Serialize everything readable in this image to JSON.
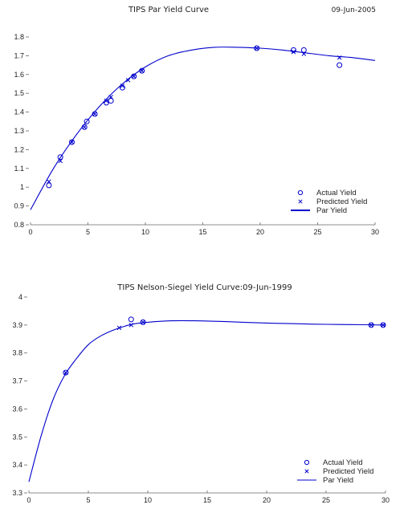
{
  "chart_data": [
    {
      "type": "line",
      "title": "TIPS Par Yield Curve",
      "date_label": "09-Jun-2005",
      "xlabel": "",
      "ylabel": "",
      "xlim": [
        0,
        30
      ],
      "ylim": [
        0.8,
        1.8
      ],
      "xticks": [
        "0",
        "5",
        "10",
        "15",
        "20",
        "25",
        "30"
      ],
      "yticks": [
        "0.8",
        "0.9",
        "1",
        "1.1",
        "1.2",
        "1.3",
        "1.4",
        "1.5",
        "1.6",
        "1.7",
        "1.8"
      ],
      "legend": {
        "placement": "bottom-right",
        "entries": [
          "Actual Yield",
          "Predicted Yield",
          "Par Yield"
        ]
      },
      "color": "#0000cc",
      "series": [
        {
          "name": "Actual Yield",
          "marker": "circle",
          "x": [
            1.6,
            2.6,
            3.6,
            4.7,
            4.9,
            5.6,
            6.6,
            7.0,
            8.0,
            9.0,
            9.7,
            19.7,
            22.9,
            23.8,
            26.9
          ],
          "y": [
            1.01,
            1.16,
            1.24,
            1.32,
            1.35,
            1.39,
            1.45,
            1.46,
            1.53,
            1.59,
            1.62,
            1.74,
            1.73,
            1.73,
            1.65
          ]
        },
        {
          "name": "Predicted Yield",
          "marker": "x",
          "x": [
            1.6,
            2.6,
            3.6,
            4.7,
            5.6,
            6.6,
            7.0,
            8.0,
            8.5,
            9.0,
            9.7,
            19.7,
            22.9,
            23.8,
            26.9
          ],
          "y": [
            1.03,
            1.14,
            1.24,
            1.32,
            1.39,
            1.46,
            1.48,
            1.54,
            1.57,
            1.59,
            1.62,
            1.74,
            1.72,
            1.71,
            1.69
          ]
        },
        {
          "name": "Par Yield",
          "marker": "line",
          "x": [
            0,
            2,
            4,
            6,
            8,
            10,
            12,
            14,
            16,
            18,
            20,
            22,
            24,
            26,
            28,
            30
          ],
          "y": [
            0.88,
            1.1,
            1.28,
            1.43,
            1.55,
            1.64,
            1.7,
            1.73,
            1.745,
            1.745,
            1.74,
            1.73,
            1.715,
            1.7,
            1.69,
            1.675
          ]
        }
      ]
    },
    {
      "type": "line",
      "title": "TIPS Nelson-Siegel Yield Curve:09-Jun-1999",
      "xlabel": "",
      "ylabel": "",
      "xlim": [
        0,
        30
      ],
      "ylim": [
        3.3,
        4.0
      ],
      "xticks": [
        "0",
        "5",
        "10",
        "15",
        "20",
        "25",
        "30"
      ],
      "yticks": [
        "3.3",
        "3.4",
        "3.5",
        "3.6",
        "3.7",
        "3.8",
        "3.9",
        "4"
      ],
      "legend": {
        "placement": "bottom-right",
        "entries": [
          "Actual Yield",
          "Predicted Yield",
          "Par Yield"
        ]
      },
      "color": "#0000cc",
      "series": [
        {
          "name": "Actual Yield",
          "marker": "circle",
          "x": [
            3.1,
            8.6,
            9.6,
            28.8,
            29.8
          ],
          "y": [
            3.73,
            3.92,
            3.91,
            3.9,
            3.9
          ]
        },
        {
          "name": "Predicted Yield",
          "marker": "x",
          "x": [
            3.1,
            7.6,
            8.6,
            9.6,
            28.8,
            29.8
          ],
          "y": [
            3.73,
            3.89,
            3.9,
            3.91,
            3.9,
            3.9
          ]
        },
        {
          "name": "Par Yield",
          "marker": "line",
          "x": [
            0,
            1,
            2,
            3,
            4,
            5,
            6,
            7,
            8,
            9,
            10,
            12,
            14,
            16,
            18,
            20,
            22,
            24,
            26,
            28,
            30
          ],
          "y": [
            3.34,
            3.5,
            3.63,
            3.72,
            3.78,
            3.83,
            3.86,
            3.88,
            3.895,
            3.905,
            3.91,
            3.915,
            3.915,
            3.913,
            3.91,
            3.907,
            3.905,
            3.903,
            3.902,
            3.901,
            3.9
          ]
        }
      ]
    }
  ]
}
